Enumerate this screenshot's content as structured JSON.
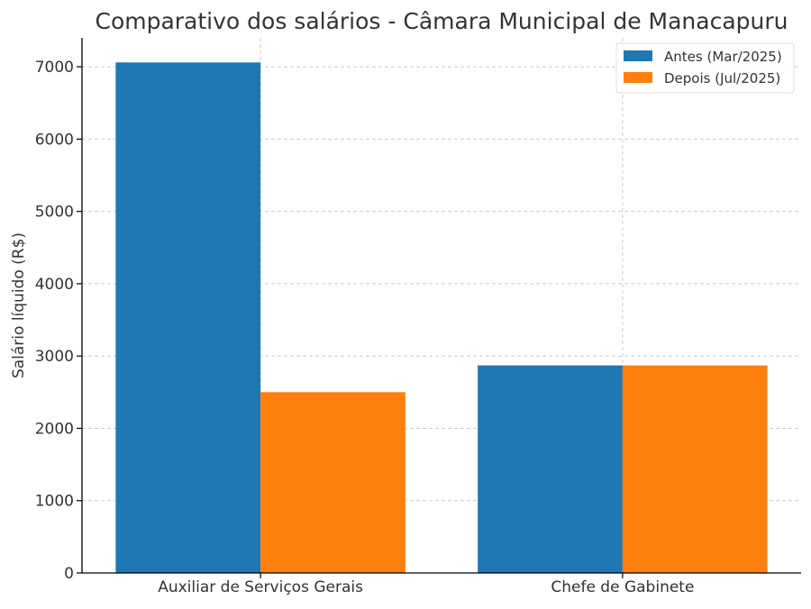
{
  "chart_data": {
    "type": "bar",
    "title": "Comparativo dos salários - Câmara Municipal de Manacapuru",
    "xlabel": "",
    "ylabel": "Salário líquido (R$)",
    "categories": [
      "Auxiliar de Serviços Gerais",
      "Chefe de Gabinete"
    ],
    "series": [
      {
        "name": "Antes (Mar/2025)",
        "color": "#1f77b4",
        "values": [
          7060,
          2870
        ]
      },
      {
        "name": "Depois (Jul/2025)",
        "color": "#ff7f0e",
        "values": [
          2500,
          2870
        ]
      }
    ],
    "ylim": [
      0,
      7400
    ],
    "yticks": [
      0,
      1000,
      2000,
      3000,
      4000,
      5000,
      6000,
      7000
    ],
    "grid": true,
    "legend_position": "top-right"
  }
}
